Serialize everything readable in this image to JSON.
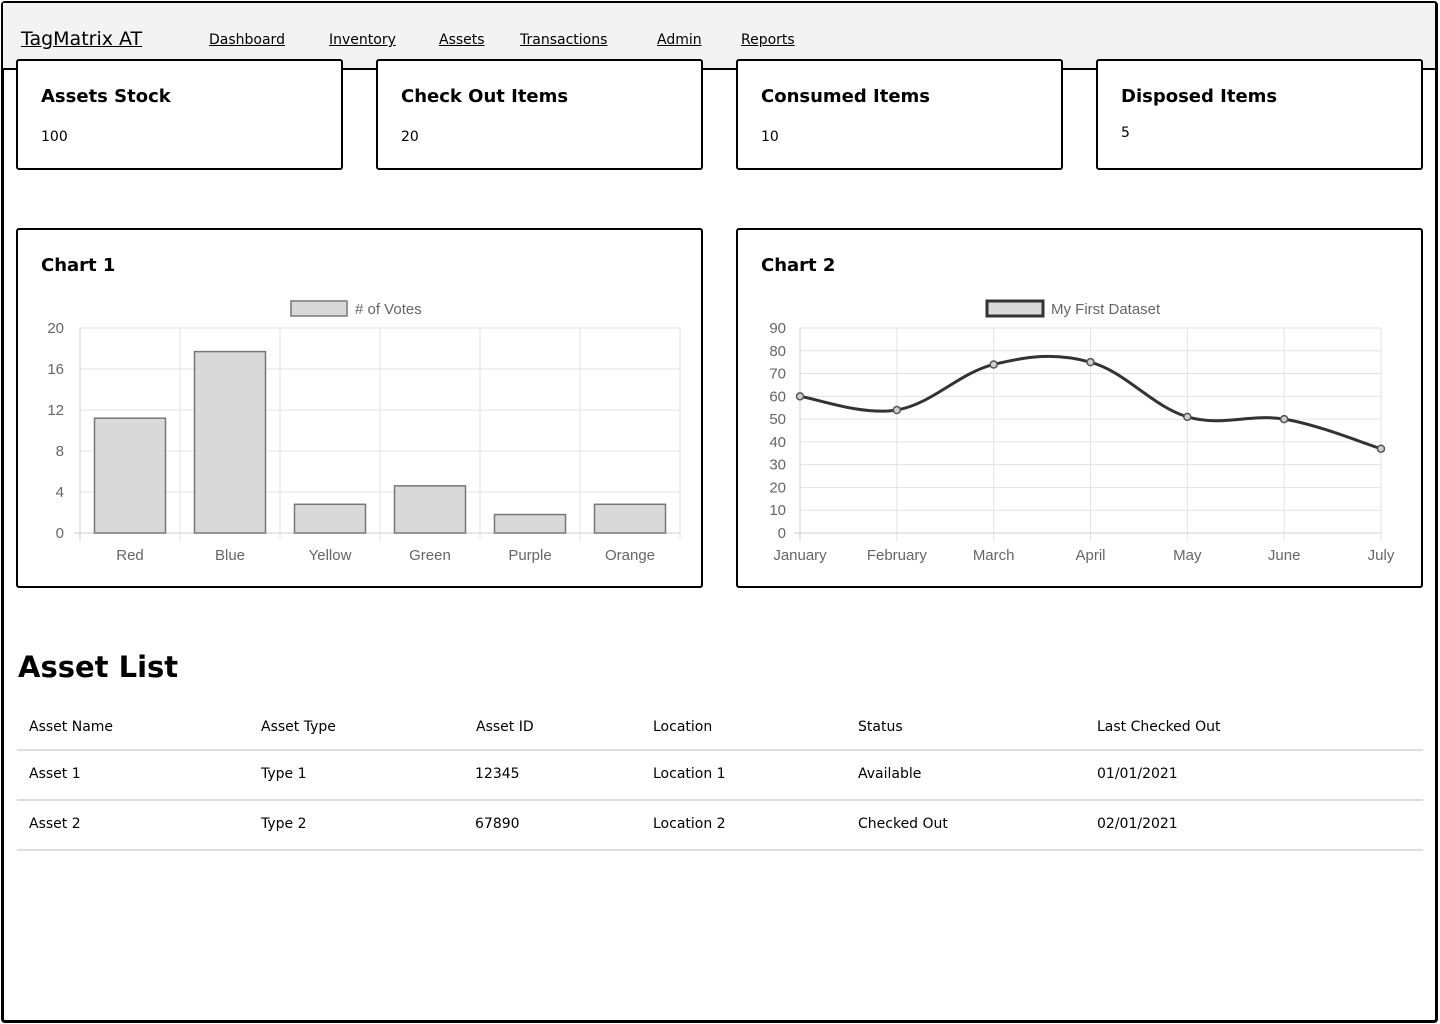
{
  "app": {
    "brand": "TagMatrix AT"
  },
  "nav": [
    {
      "label": "Dashboard"
    },
    {
      "label": "Inventory"
    },
    {
      "label": "Assets"
    },
    {
      "label": "Transactions"
    },
    {
      "label": "Admin"
    },
    {
      "label": "Reports"
    }
  ],
  "stats": [
    {
      "title": "Assets Stock",
      "value": "100"
    },
    {
      "title": "Check Out Items",
      "value": "20"
    },
    {
      "title": "Consumed Items",
      "value": "10"
    },
    {
      "title": "Disposed Items",
      "value": "5"
    }
  ],
  "charts": {
    "chart1_title": "Chart 1",
    "chart2_title": "Chart 2"
  },
  "chart_data": [
    {
      "type": "bar",
      "title": "",
      "categories": [
        "Red",
        "Blue",
        "Yellow",
        "Green",
        "Purple",
        "Orange"
      ],
      "series": [
        {
          "name": "# of Votes",
          "values": [
            11.2,
            17.7,
            2.8,
            4.6,
            1.8,
            2.8
          ]
        }
      ],
      "ylim": [
        0,
        20
      ],
      "yticks": [
        0,
        4,
        8,
        12,
        16,
        20
      ],
      "grid": true,
      "legend": "top",
      "colors": {
        "fill": "#d9d9d9",
        "stroke": "#777777"
      }
    },
    {
      "type": "line",
      "title": "",
      "categories": [
        "January",
        "February",
        "March",
        "April",
        "May",
        "June",
        "July"
      ],
      "series": [
        {
          "name": "My First Dataset",
          "values": [
            60,
            54,
            74,
            75,
            51,
            50,
            37
          ]
        }
      ],
      "ylim": [
        0,
        90
      ],
      "yticks": [
        0,
        10,
        20,
        30,
        40,
        50,
        60,
        70,
        80,
        90
      ],
      "grid": true,
      "legend": "top",
      "colors": {
        "line": "#333333",
        "legend_fill": "#d9d9d9"
      }
    }
  ],
  "asset_list": {
    "title": "Asset List",
    "columns": [
      "Asset Name",
      "Asset Type",
      "Asset ID",
      "Location",
      "Status",
      "Last Checked Out"
    ],
    "rows": [
      [
        "Asset 1",
        "Type 1",
        "12345",
        "Location 1",
        "Available",
        "01/01/2021"
      ],
      [
        "Asset 2",
        "Type 2",
        "67890",
        "Location 2",
        "Checked Out",
        "02/01/2021"
      ]
    ]
  }
}
